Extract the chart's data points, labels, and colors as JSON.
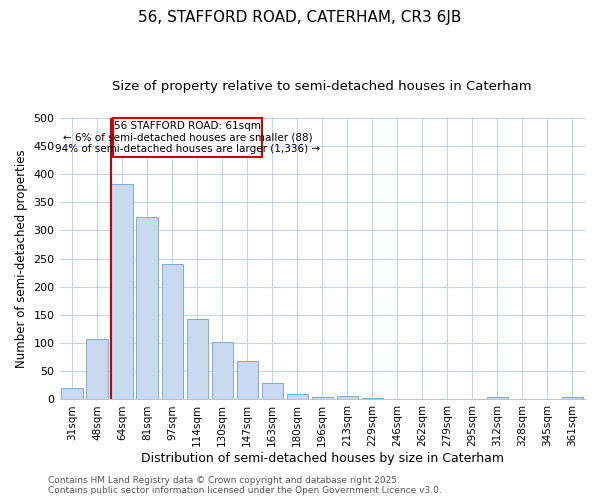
{
  "title1": "56, STAFFORD ROAD, CATERHAM, CR3 6JB",
  "title2": "Size of property relative to semi-detached houses in Caterham",
  "xlabel": "Distribution of semi-detached houses by size in Caterham",
  "ylabel": "Number of semi-detached properties",
  "categories": [
    "31sqm",
    "48sqm",
    "64sqm",
    "81sqm",
    "97sqm",
    "114sqm",
    "130sqm",
    "147sqm",
    "163sqm",
    "180sqm",
    "196sqm",
    "213sqm",
    "229sqm",
    "246sqm",
    "262sqm",
    "279sqm",
    "295sqm",
    "312sqm",
    "328sqm",
    "345sqm",
    "361sqm"
  ],
  "values": [
    20,
    107,
    383,
    323,
    240,
    143,
    102,
    68,
    30,
    9,
    5,
    7,
    2,
    1,
    1,
    1,
    1,
    4,
    1,
    1,
    4
  ],
  "bar_color": "#c8d9f0",
  "bar_edge_color": "#7aadd4",
  "red_line_color": "#cc0000",
  "annotation_line1": "56 STAFFORD ROAD: 61sqm",
  "annotation_line2": "← 6% of semi-detached houses are smaller (88)",
  "annotation_line3": "94% of semi-detached houses are larger (1,336) →",
  "annotation_box_facecolor": "#ffffff",
  "annotation_box_edgecolor": "#cc0000",
  "ylim": [
    0,
    500
  ],
  "yticks": [
    0,
    50,
    100,
    150,
    200,
    250,
    300,
    350,
    400,
    450,
    500
  ],
  "background_color": "#ffffff",
  "grid_color": "#c8d4e8",
  "title1_fontsize": 11,
  "title2_fontsize": 9.5,
  "xlabel_fontsize": 9,
  "ylabel_fontsize": 8.5,
  "footer_text": "Contains HM Land Registry data © Crown copyright and database right 2025.\nContains public sector information licensed under the Open Government Licence v3.0.",
  "footer_color": "#555555",
  "footer_fontsize": 6.5
}
